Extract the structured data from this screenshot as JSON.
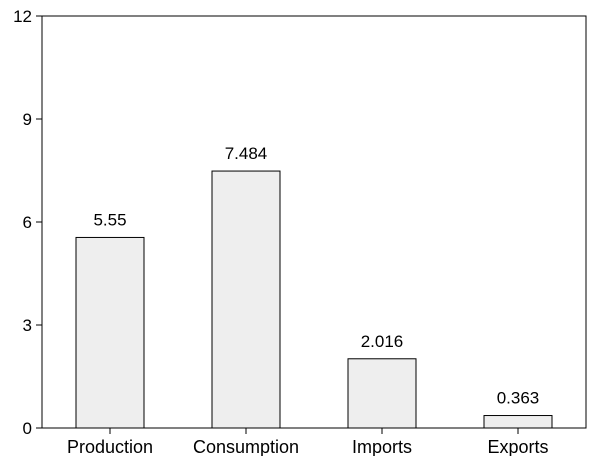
{
  "chart_data": {
    "type": "bar",
    "categories": [
      "Production",
      "Consumption",
      "Imports",
      "Exports"
    ],
    "values": [
      5.55,
      7.484,
      2.016,
      0.363
    ],
    "data_labels": [
      "5.55",
      "7.484",
      "2.016",
      "0.363"
    ],
    "title": "",
    "xlabel": "",
    "ylabel": "",
    "ylim": [
      0,
      12
    ],
    "yticks": [
      0,
      3,
      6,
      9,
      12
    ],
    "grid": false,
    "legend": "none",
    "bar_fill": "#eeeeee",
    "bar_stroke": "#000000"
  }
}
